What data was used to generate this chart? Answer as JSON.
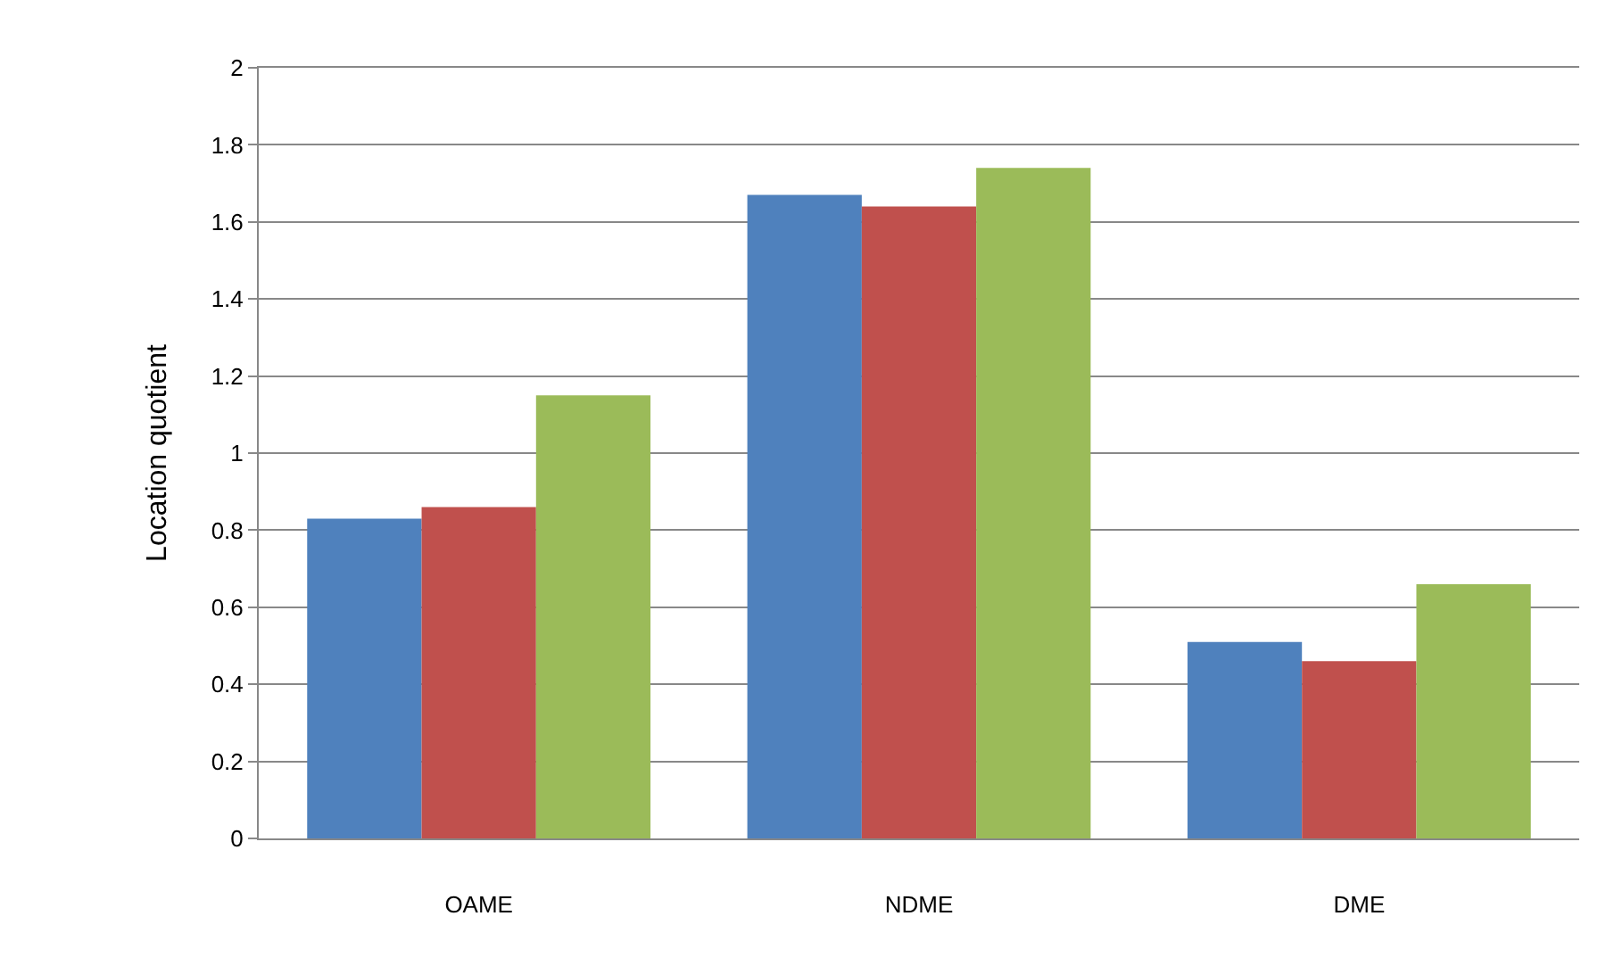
{
  "chart_data": {
    "type": "bar",
    "ylabel": "Location quotient",
    "categories": [
      "OAME",
      "NDME",
      "DME"
    ],
    "series": [
      {
        "color": "#4f81bd",
        "values": [
          0.83,
          1.67,
          0.51
        ]
      },
      {
        "color": "#c0504d",
        "values": [
          0.86,
          1.64,
          0.46
        ]
      },
      {
        "color": "#9bbb59",
        "values": [
          1.15,
          1.74,
          0.66
        ]
      }
    ],
    "ylim": [
      0,
      2
    ],
    "yticks": [
      0,
      0.2,
      0.4,
      0.6,
      0.8,
      1,
      1.2,
      1.4,
      1.6,
      1.8,
      2
    ],
    "grid": "y"
  }
}
